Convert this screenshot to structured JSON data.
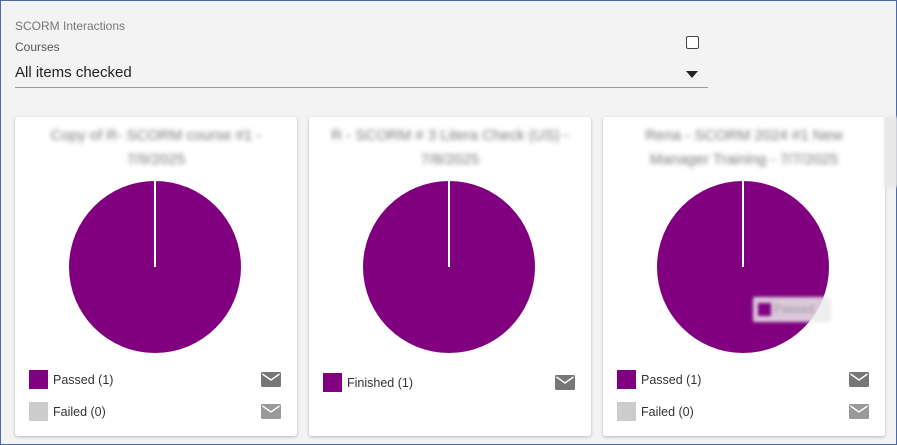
{
  "header": {
    "section_title": "SCORM Interactions",
    "courses_label": "Courses",
    "courses_value": "All items checked"
  },
  "colors": {
    "passed": "#800080",
    "failed": "#cccccc",
    "divider": "#ffffff",
    "icon": "#777777"
  },
  "cards": [
    {
      "title": "Copy of R- SCORM course #1 - 7/9/2025",
      "legend": [
        {
          "label": "Passed (1)",
          "color": "#800080",
          "icon": "mail-icon"
        },
        {
          "label": "Failed (0)",
          "color": "#cccccc",
          "icon": "mail-icon"
        }
      ]
    },
    {
      "title": "R - SCORM # 3 Litera Check (US) - 7/8/2025",
      "legend": [
        {
          "label": "Finished (1)",
          "color": "#800080",
          "icon": "mail-icon"
        }
      ]
    },
    {
      "title": "Rena - SCORM 2024 #1 New Manager Training - 7/7/2025",
      "tooltip": "Passed",
      "legend": [
        {
          "label": "Passed (1)",
          "color": "#800080",
          "icon": "mail-icon"
        },
        {
          "label": "Failed (0)",
          "color": "#cccccc",
          "icon": "mail-icon"
        }
      ]
    }
  ]
}
